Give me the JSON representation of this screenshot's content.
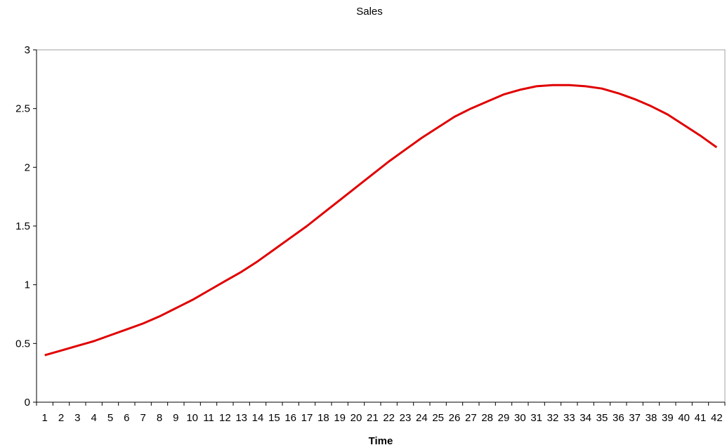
{
  "chart_data": {
    "type": "line",
    "title": "Sales",
    "xlabel": "Time",
    "ylabel": "",
    "x": [
      1,
      2,
      3,
      4,
      5,
      6,
      7,
      8,
      9,
      10,
      11,
      12,
      13,
      14,
      15,
      16,
      17,
      18,
      19,
      20,
      21,
      22,
      23,
      24,
      25,
      26,
      27,
      28,
      29,
      30,
      31,
      32,
      33,
      34,
      35,
      36,
      37,
      38,
      39,
      40,
      41,
      42
    ],
    "ylim": [
      0,
      3
    ],
    "yticks": [
      "0",
      "0.5",
      "1",
      "1.5",
      "2",
      "2.5",
      "3"
    ],
    "grid": false,
    "legend": "none",
    "series": [
      {
        "name": "",
        "color": "#e00000",
        "values": [
          0.4,
          0.44,
          0.48,
          0.52,
          0.57,
          0.62,
          0.67,
          0.73,
          0.8,
          0.87,
          0.95,
          1.03,
          1.11,
          1.2,
          1.3,
          1.4,
          1.5,
          1.61,
          1.72,
          1.83,
          1.94,
          2.05,
          2.15,
          2.25,
          2.34,
          2.43,
          2.5,
          2.56,
          2.62,
          2.66,
          2.69,
          2.7,
          2.7,
          2.69,
          2.67,
          2.63,
          2.58,
          2.52,
          2.45,
          2.36,
          2.27,
          2.17
        ]
      }
    ]
  }
}
